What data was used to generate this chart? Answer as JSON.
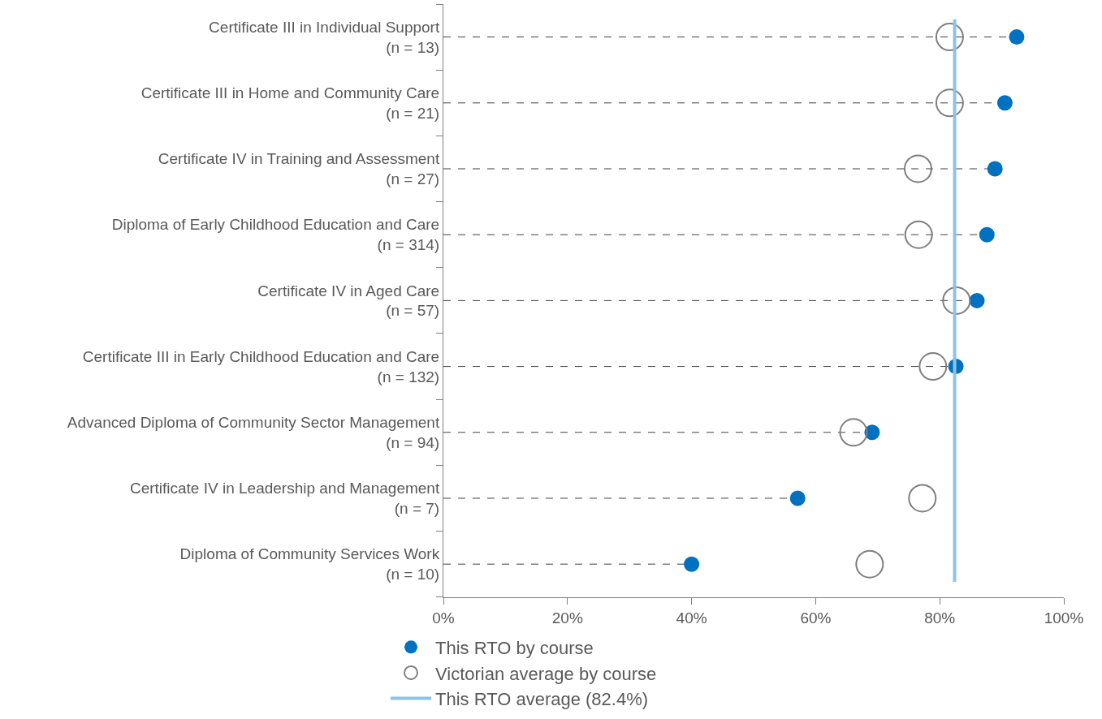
{
  "chart_data": {
    "type": "lollipop",
    "orientation": "horizontal",
    "categories": [
      "Certificate III in Individual Support\n(n = 13)",
      "Certificate III in Home and Community Care\n(n = 21)",
      "Certificate IV in Training and Assessment\n(n = 27)",
      "Diploma of Early Childhood Education and Care\n(n = 314)",
      "Certificate IV in Aged Care\n(n = 57)",
      "Certificate III in Early Childhood Education and Care\n(n = 132)",
      "Advanced Diploma of Community Sector Management\n(n = 94)",
      "Certificate IV in Leadership and Management\n(n = 7)",
      "Diploma of Community Services Work\n(n = 10)"
    ],
    "series": [
      {
        "name": "This RTO by course",
        "color": "#0070c0",
        "marker": "circle",
        "line_style": "dashed",
        "values": [
          92.4,
          90.5,
          88.9,
          87.6,
          86.0,
          82.6,
          69.1,
          57.1,
          40.0
        ]
      },
      {
        "name": "Victorian average by course",
        "type": "scatter",
        "color": "#7f7f7f",
        "marker": "circle",
        "values": [
          81.6,
          81.6,
          76.5,
          76.6,
          82.7,
          78.9,
          66.1,
          77.2,
          68.7
        ]
      }
    ],
    "xlim": [
      0,
      100
    ],
    "xticks": [
      {
        "value": 0,
        "label": "0%"
      },
      {
        "value": 20,
        "label": "20%"
      },
      {
        "value": 40,
        "label": "40%"
      },
      {
        "value": 60,
        "label": "60%"
      },
      {
        "value": 80,
        "label": "80%"
      },
      {
        "value": 100,
        "label": "100%"
      }
    ],
    "ref_lines": [
      {
        "axis": "x",
        "value": 82.4,
        "label": "This RTO average (82.4%)",
        "color": "#8dc3e8"
      }
    ],
    "legend": "bottom"
  }
}
